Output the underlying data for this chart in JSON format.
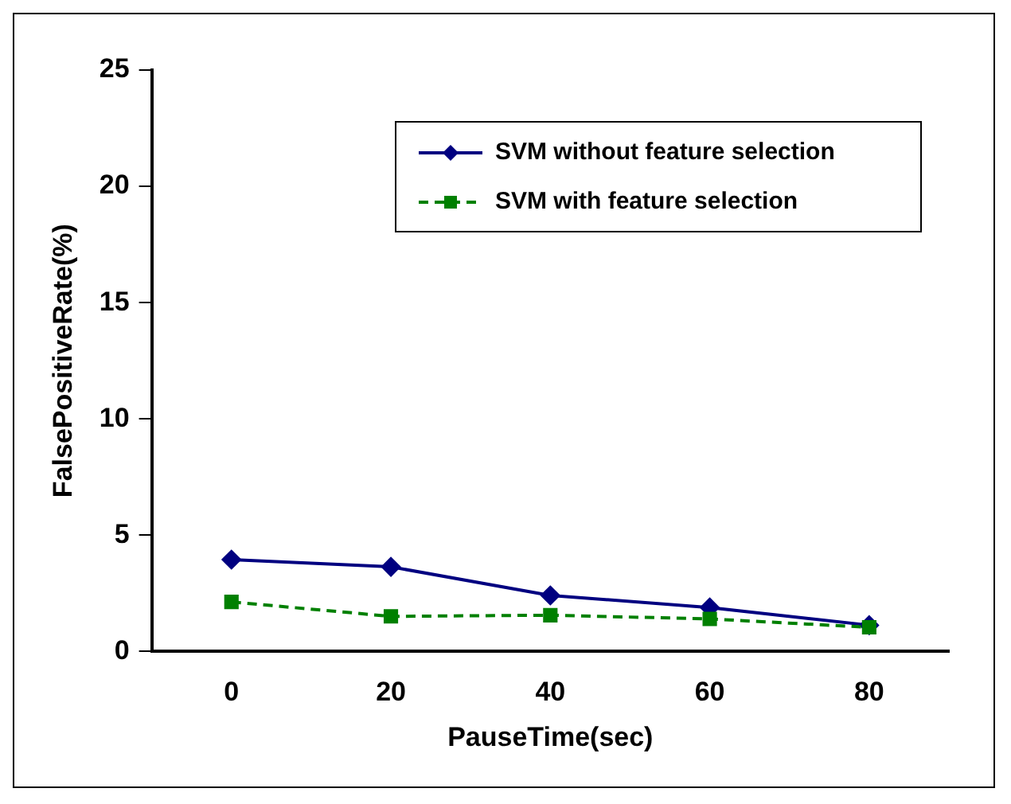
{
  "chart_data": {
    "type": "line",
    "xlabel": "PauseTime(sec)",
    "ylabel": "FalsePositiveRate(%)",
    "categories": [
      "0",
      "20",
      "40",
      "60",
      "80"
    ],
    "series": [
      {
        "name": "SVM without feature selection",
        "color": "#000080",
        "values": [
          3.95,
          3.64,
          2.41,
          1.89,
          1.13
        ],
        "marker": "diamond",
        "line_style": "solid"
      },
      {
        "name": "SVM with feature selection",
        "color": "#008000",
        "values": [
          2.13,
          1.51,
          1.56,
          1.4,
          1.04
        ],
        "marker": "square",
        "line_style": "dashed"
      }
    ],
    "ylim": [
      0,
      25
    ],
    "yticks": [
      0,
      5,
      10,
      15,
      20,
      25
    ],
    "grid": false,
    "legend": "top right"
  }
}
